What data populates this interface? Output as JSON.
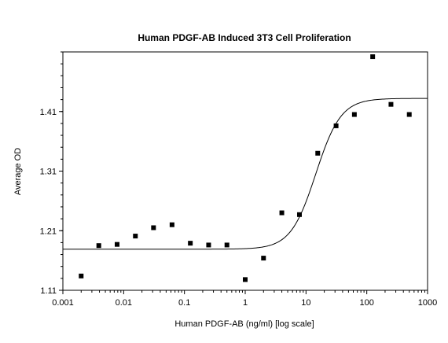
{
  "chart_data": {
    "type": "scatter",
    "title": "Human PDGF-AB Induced 3T3 Cell Proliferation",
    "xlabel": "Human PDGF-AB (ng/ml) [log scale]",
    "ylabel": "Average OD",
    "xscale": "log",
    "xlim": [
      0.001,
      1000
    ],
    "ylim": [
      1.11,
      1.51
    ],
    "x_ticks": [
      0.001,
      0.01,
      0.1,
      1,
      10,
      100,
      1000
    ],
    "x_tick_labels": [
      "0.001",
      "0.01",
      "0.1",
      "1",
      "10",
      "100",
      "1000"
    ],
    "y_ticks": [
      1.11,
      1.21,
      1.31,
      1.41
    ],
    "y_tick_labels": [
      "1.11",
      "1.21",
      "1.31",
      "1.41"
    ],
    "grid": false,
    "legend": "none",
    "points": [
      {
        "x": 0.002,
        "y": 1.134
      },
      {
        "x": 0.0039,
        "y": 1.185
      },
      {
        "x": 0.0078,
        "y": 1.187
      },
      {
        "x": 0.0156,
        "y": 1.201
      },
      {
        "x": 0.031,
        "y": 1.215
      },
      {
        "x": 0.0625,
        "y": 1.22
      },
      {
        "x": 0.125,
        "y": 1.189
      },
      {
        "x": 0.25,
        "y": 1.186
      },
      {
        "x": 0.5,
        "y": 1.186
      },
      {
        "x": 1,
        "y": 1.128
      },
      {
        "x": 2,
        "y": 1.164
      },
      {
        "x": 4,
        "y": 1.24
      },
      {
        "x": 7.8,
        "y": 1.237
      },
      {
        "x": 15.6,
        "y": 1.34
      },
      {
        "x": 31.25,
        "y": 1.386
      },
      {
        "x": 62.5,
        "y": 1.405
      },
      {
        "x": 125,
        "y": 1.502
      },
      {
        "x": 250,
        "y": 1.422
      },
      {
        "x": 500,
        "y": 1.405
      }
    ],
    "fit_curve": {
      "bottom": 1.179,
      "top": 1.432,
      "ec50": 14.5,
      "hill": 2.1
    },
    "colors": {
      "marker": "#000000",
      "line": "#000000",
      "background": "#ffffff"
    }
  }
}
